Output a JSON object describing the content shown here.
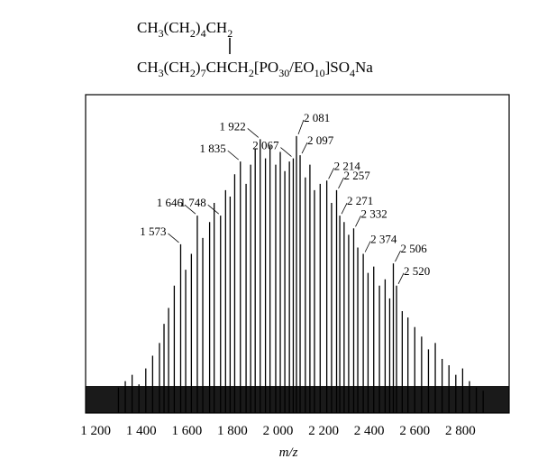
{
  "chart_data": {
    "type": "spectrum",
    "formula": {
      "line1": [
        "CH",
        "3",
        "(CH",
        "2",
        ")",
        "4",
        "CH",
        "2"
      ],
      "line2": [
        "CH",
        "3",
        "(CH",
        "2",
        ")",
        "7",
        "CHCH",
        "2",
        "[PO",
        "30",
        "/EO",
        "10",
        "]SO",
        "4",
        "Na"
      ]
    },
    "x_label": "m/z",
    "x": [
      1300,
      1330,
      1360,
      1390,
      1420,
      1450,
      1480,
      1500,
      1520,
      1545,
      1573,
      1595,
      1620,
      1646,
      1670,
      1700,
      1720,
      1748,
      1770,
      1790,
      1810,
      1835,
      1860,
      1880,
      1900,
      1922,
      1945,
      1965,
      1990,
      2010,
      2030,
      2050,
      2067,
      2081,
      2097,
      2120,
      2140,
      2160,
      2185,
      2214,
      2235,
      2257,
      2271,
      2290,
      2310,
      2332,
      2350,
      2374,
      2395,
      2420,
      2445,
      2470,
      2490,
      2506,
      2520,
      2545,
      2570,
      2600,
      2630,
      2660,
      2690,
      2720,
      2750,
      2780,
      2810,
      2840,
      2870,
      2900
    ],
    "values": [
      8,
      10,
      12,
      9,
      14,
      18,
      22,
      28,
      33,
      40,
      53,
      45,
      50,
      62,
      55,
      60,
      66,
      62,
      70,
      68,
      75,
      79,
      72,
      78,
      83,
      86,
      80,
      84,
      78,
      82,
      76,
      79,
      80,
      87,
      81,
      74,
      78,
      70,
      72,
      73,
      66,
      70,
      62,
      60,
      56,
      58,
      52,
      50,
      44,
      46,
      40,
      42,
      36,
      47,
      40,
      32,
      30,
      27,
      24,
      20,
      22,
      17,
      15,
      12,
      14,
      10,
      8,
      7
    ],
    "color": "#000000",
    "annotations": [
      {
        "x": 1573,
        "text": "1 573"
      },
      {
        "x": 1646,
        "text": "1 646"
      },
      {
        "x": 1748,
        "text": "1 748"
      },
      {
        "x": 1835,
        "text": "1 835"
      },
      {
        "x": 1922,
        "text": "1 922"
      },
      {
        "x": 2067,
        "text": "2 067"
      },
      {
        "x": 2081,
        "text": "2 081"
      },
      {
        "x": 2097,
        "text": "2 097"
      },
      {
        "x": 2214,
        "text": "2 214"
      },
      {
        "x": 2257,
        "text": "2 257"
      },
      {
        "x": 2271,
        "text": "2 271"
      },
      {
        "x": 2332,
        "text": "2 332"
      },
      {
        "x": 2374,
        "text": "2 374"
      },
      {
        "x": 2506,
        "text": "2 506"
      },
      {
        "x": 2520,
        "text": "2 520"
      }
    ],
    "xlim": [
      1156,
      3014
    ],
    "ylim": [
      0,
      100
    ],
    "xticks": [
      {
        "value": 1200,
        "label": "1 200"
      },
      {
        "value": 1400,
        "label": "1 400"
      },
      {
        "value": 1600,
        "label": "1 600"
      },
      {
        "value": 1800,
        "label": "1 800"
      },
      {
        "value": 2000,
        "label": "2 000"
      },
      {
        "value": 2200,
        "label": "2 200"
      },
      {
        "value": 2400,
        "label": "2 400"
      },
      {
        "value": 2600,
        "label": "2 600"
      },
      {
        "value": 2800,
        "label": "2 800"
      }
    ]
  }
}
